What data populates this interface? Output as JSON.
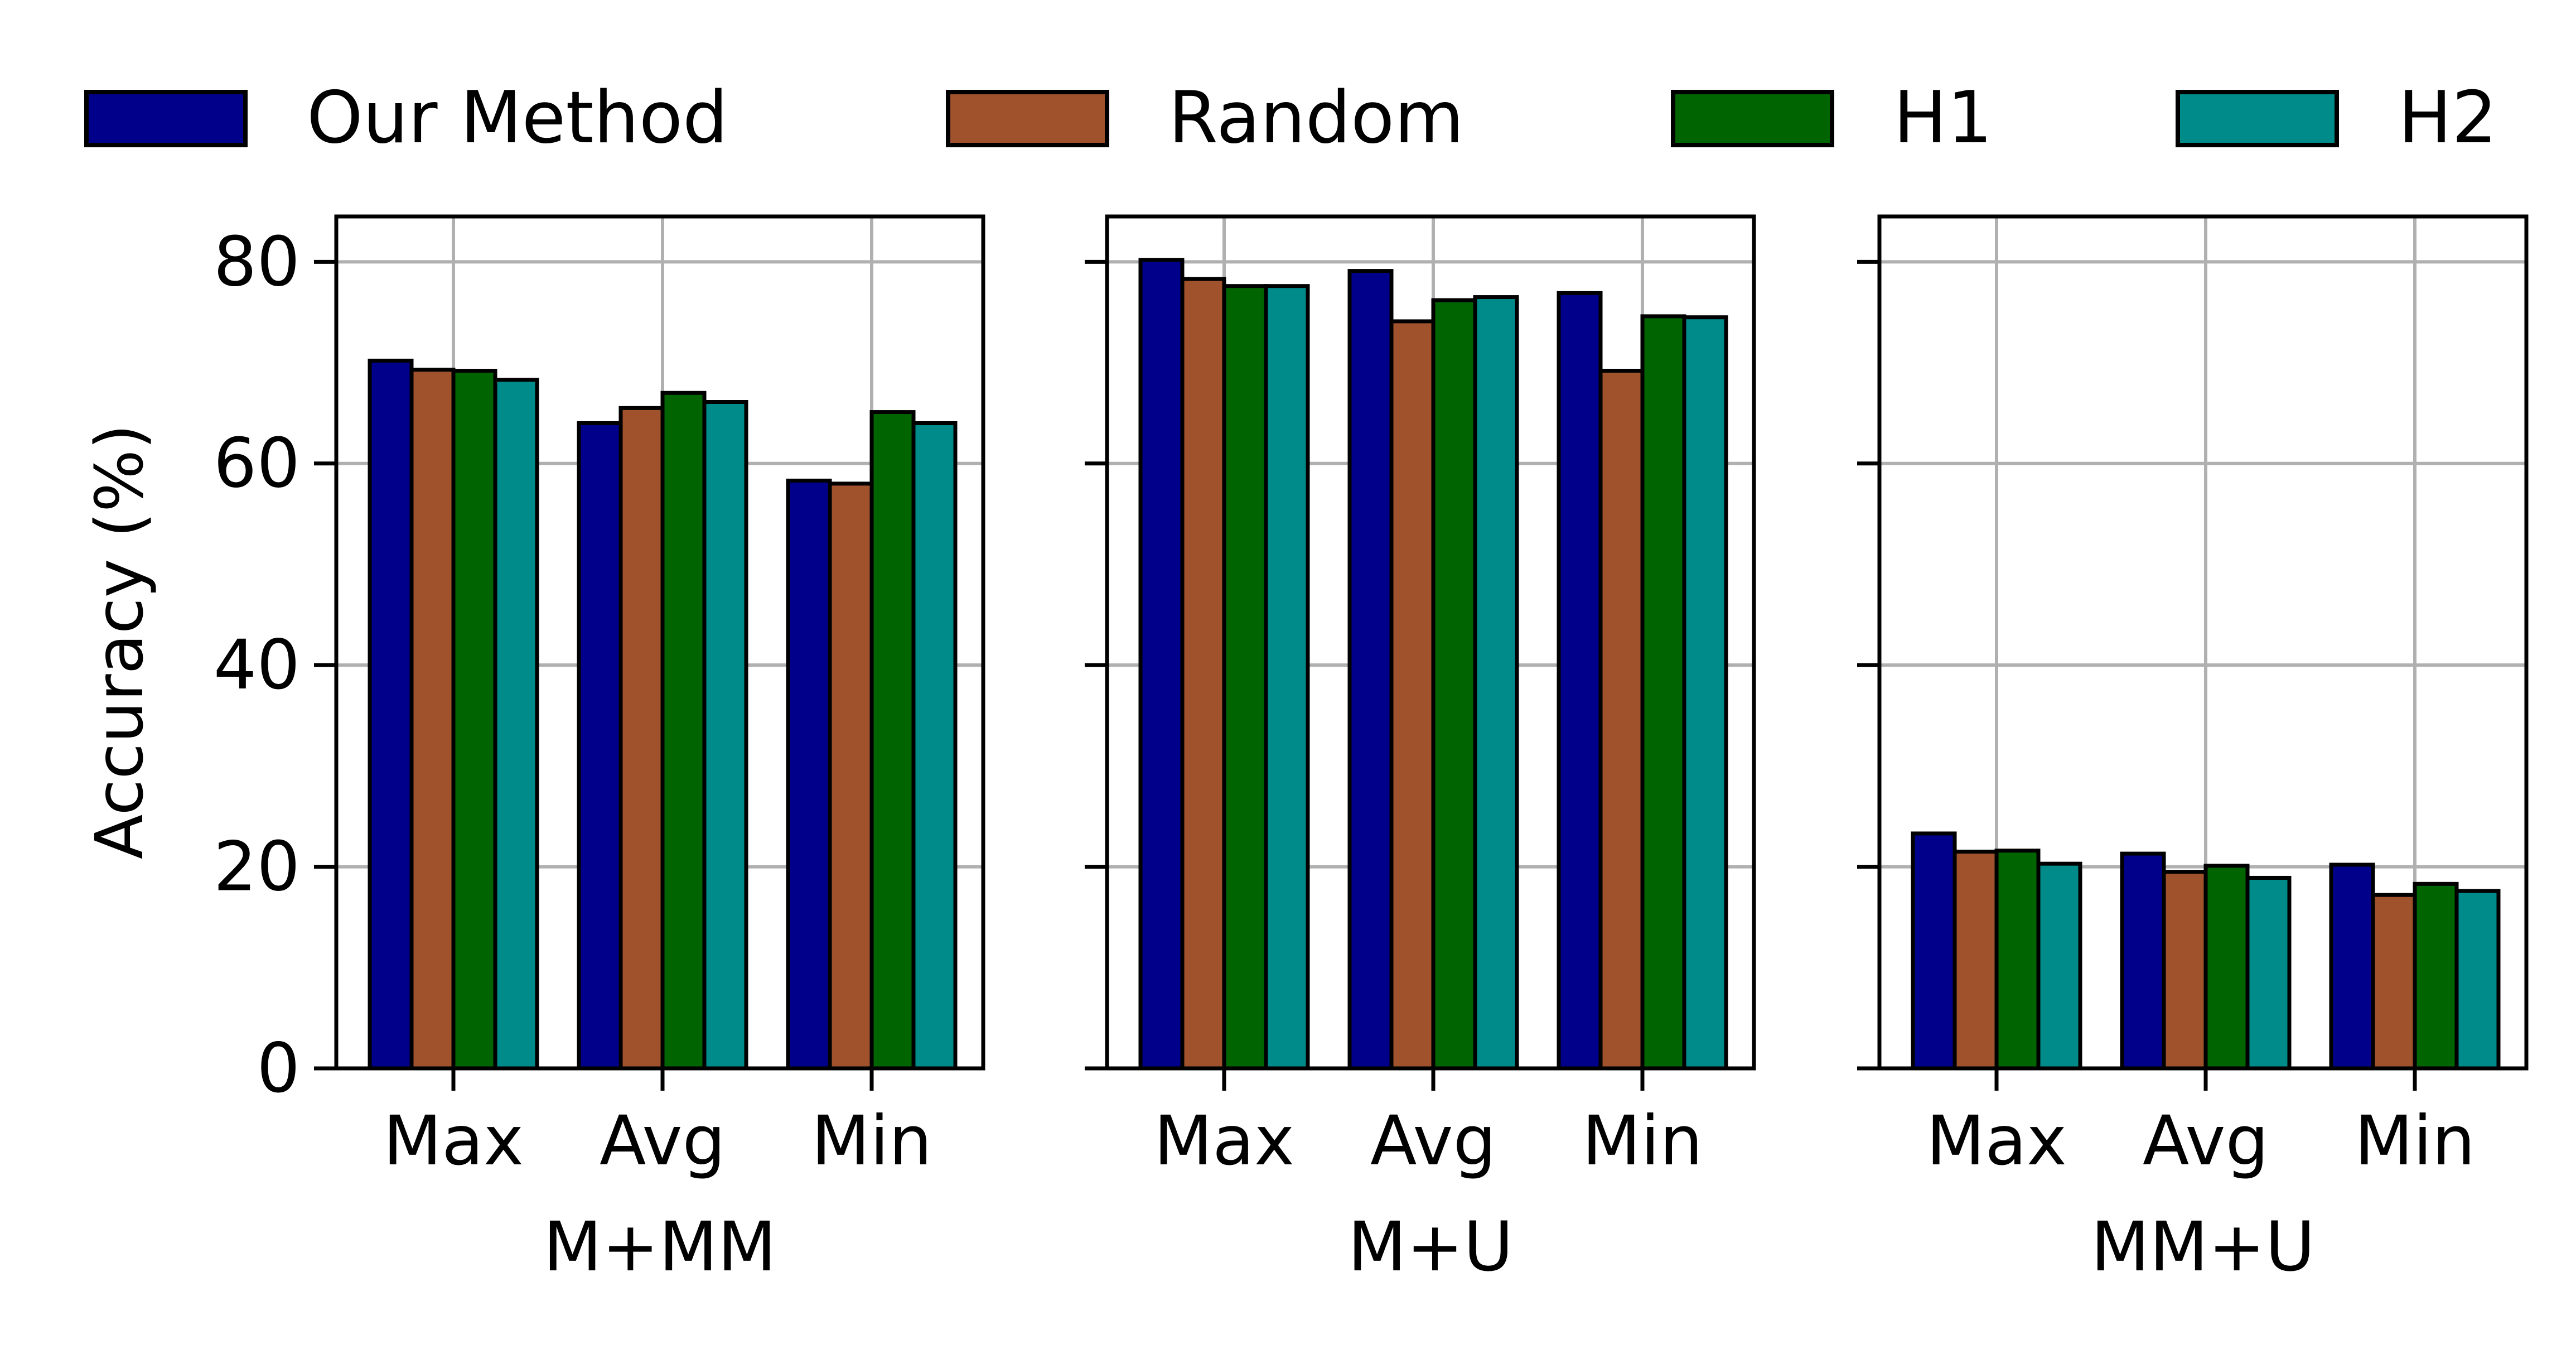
{
  "legend": {
    "placement": "top",
    "entries": [
      {
        "label": "Our Method",
        "color": "#00008B"
      },
      {
        "label": "Random",
        "color": "#A0522D"
      },
      {
        "label": "H1",
        "color": "#006400"
      },
      {
        "label": "H2",
        "color": "#008B8B"
      }
    ]
  },
  "ylabel": "Accuracy (%)",
  "chart_data": [
    {
      "type": "bar",
      "title": "",
      "xlabel": "M+MM",
      "ylabel": "Accuracy (%)",
      "categories": [
        "Max",
        "Avg",
        "Min"
      ],
      "ylim": [
        0,
        84.5
      ],
      "yticks": [
        0,
        20,
        40,
        60,
        80
      ],
      "grid": true,
      "series": [
        {
          "name": "Our Method",
          "values": [
            70.2,
            64.0,
            58.3
          ]
        },
        {
          "name": "Random",
          "values": [
            69.3,
            65.5,
            58.0
          ]
        },
        {
          "name": "H1",
          "values": [
            69.2,
            67.0,
            65.1
          ]
        },
        {
          "name": "H2",
          "values": [
            68.3,
            66.1,
            64.0
          ]
        }
      ]
    },
    {
      "type": "bar",
      "title": "",
      "xlabel": "M+U",
      "ylabel": "",
      "categories": [
        "Max",
        "Avg",
        "Min"
      ],
      "ylim": [
        0,
        84.5
      ],
      "yticks": [
        0,
        20,
        40,
        60,
        80
      ],
      "grid": true,
      "series": [
        {
          "name": "Our Method",
          "values": [
            80.2,
            79.1,
            76.9
          ]
        },
        {
          "name": "Random",
          "values": [
            78.3,
            74.1,
            69.2
          ]
        },
        {
          "name": "H1",
          "values": [
            77.6,
            76.2,
            74.6
          ]
        },
        {
          "name": "H2",
          "values": [
            77.6,
            76.5,
            74.5
          ]
        }
      ]
    },
    {
      "type": "bar",
      "title": "",
      "xlabel": "MM+U",
      "ylabel": "",
      "categories": [
        "Max",
        "Avg",
        "Min"
      ],
      "ylim": [
        0,
        84.5
      ],
      "yticks": [
        0,
        20,
        40,
        60,
        80
      ],
      "grid": true,
      "series": [
        {
          "name": "Our Method",
          "values": [
            23.3,
            21.3,
            20.2
          ]
        },
        {
          "name": "Random",
          "values": [
            21.5,
            19.5,
            17.2
          ]
        },
        {
          "name": "H1",
          "values": [
            21.6,
            20.1,
            18.3
          ]
        },
        {
          "name": "H2",
          "values": [
            20.3,
            18.9,
            17.6
          ]
        }
      ]
    }
  ]
}
